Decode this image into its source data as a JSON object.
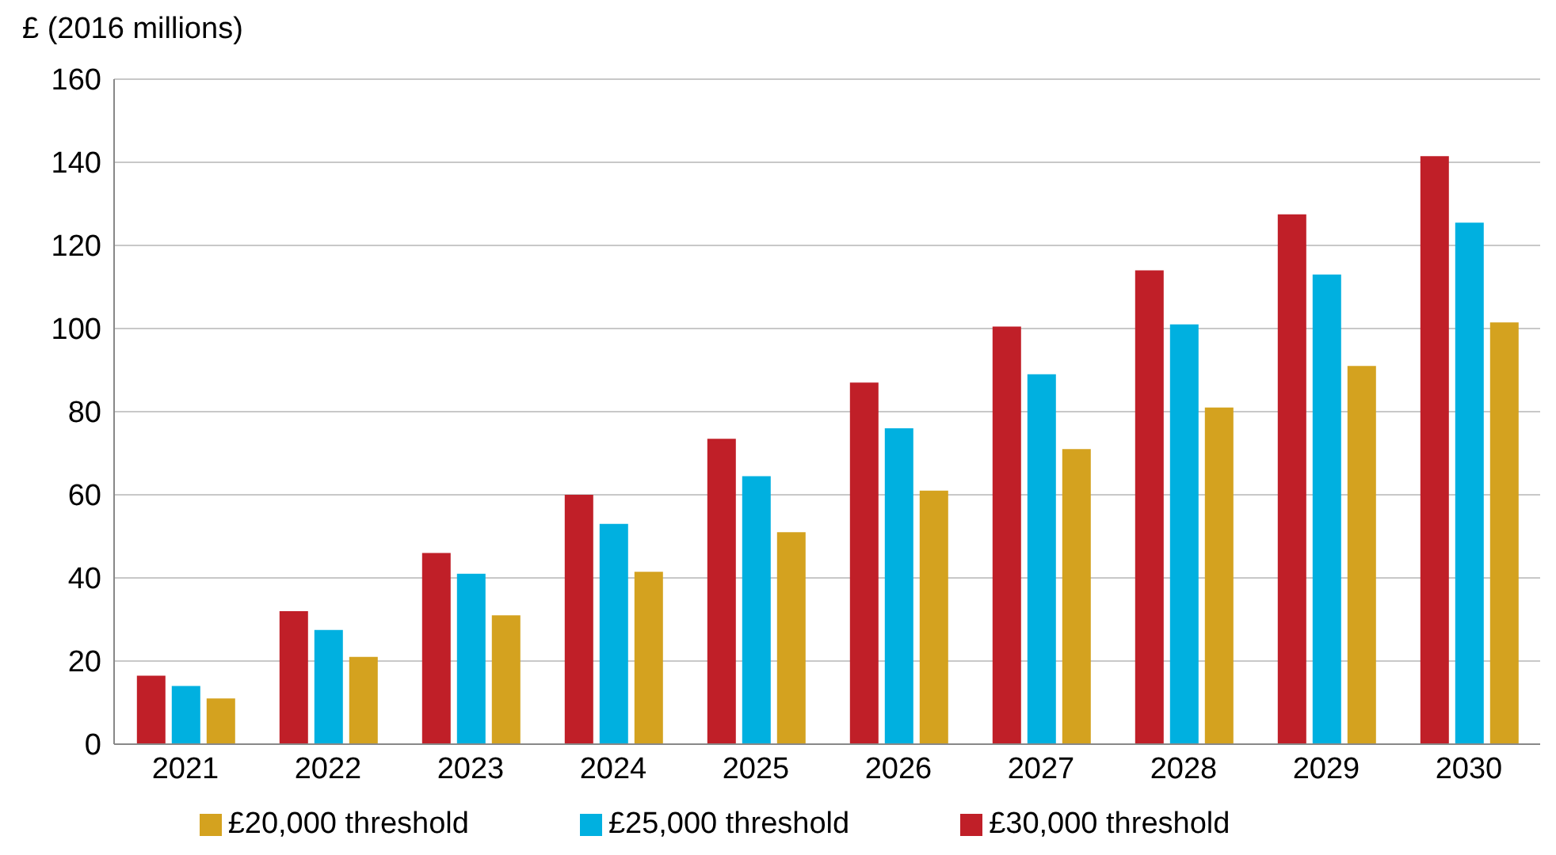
{
  "chart_data": {
    "type": "bar",
    "ylabel": "£ (2016 millions)",
    "categories": [
      "2021",
      "2022",
      "2023",
      "2024",
      "2025",
      "2026",
      "2027",
      "2028",
      "2029",
      "2030"
    ],
    "series": [
      {
        "name": "£30,000 threshold",
        "color": "#c01f28",
        "values": [
          16.5,
          32,
          46,
          60,
          73.5,
          87,
          100.5,
          114,
          127.5,
          141.5
        ]
      },
      {
        "name": "£25,000 threshold",
        "color": "#00b0e0",
        "values": [
          14,
          27.5,
          41,
          53,
          64.5,
          76,
          89,
          101,
          113,
          125.5
        ]
      },
      {
        "name": "£20,000 threshold",
        "color": "#d4a21f",
        "values": [
          11,
          21,
          31,
          41.5,
          51,
          61,
          71,
          81,
          91,
          101.5
        ]
      }
    ],
    "ylim": [
      0,
      160
    ],
    "yticks": [
      0,
      20,
      40,
      60,
      80,
      100,
      120,
      140,
      160
    ],
    "grid": "y",
    "legend": "bottom"
  }
}
